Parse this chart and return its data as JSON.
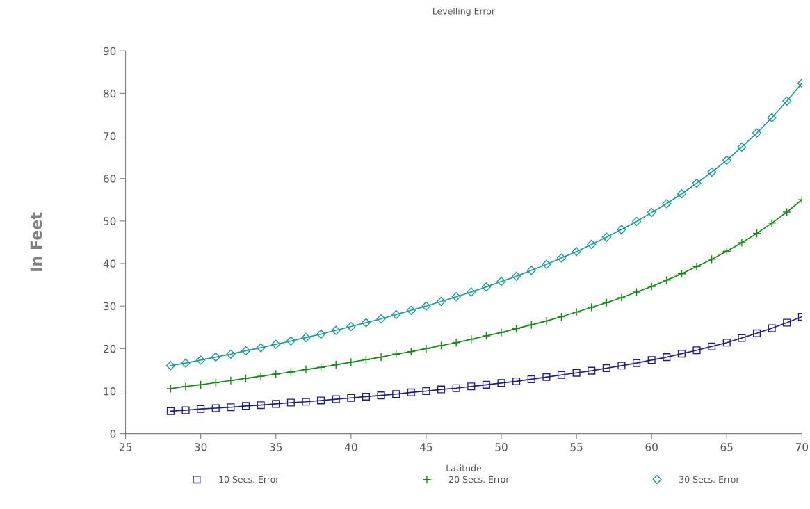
{
  "chart_data": {
    "type": "line",
    "title": "Levelling Error",
    "xlabel": "Latitude",
    "ylabel": "In Feet",
    "x": [
      28,
      29,
      30,
      31,
      32,
      33,
      34,
      35,
      36,
      37,
      38,
      39,
      40,
      41,
      42,
      43,
      44,
      45,
      46,
      47,
      48,
      49,
      50,
      51,
      52,
      53,
      54,
      55,
      56,
      57,
      58,
      59,
      60,
      61,
      62,
      63,
      64,
      65,
      66,
      67,
      68,
      69,
      70
    ],
    "series": [
      {
        "name": "10 Secs. Error",
        "color": "#1c1c8c",
        "marker": "square",
        "values": [
          5.3,
          5.5,
          5.8,
          6.0,
          6.2,
          6.5,
          6.7,
          7.0,
          7.3,
          7.5,
          7.8,
          8.1,
          8.4,
          8.7,
          9.0,
          9.3,
          9.7,
          10.0,
          10.4,
          10.7,
          11.1,
          11.5,
          11.9,
          12.3,
          12.8,
          13.3,
          13.8,
          14.3,
          14.8,
          15.4,
          16.0,
          16.6,
          17.3,
          18.0,
          18.8,
          19.6,
          20.5,
          21.4,
          22.5,
          23.6,
          24.8,
          26.1,
          27.5
        ]
      },
      {
        "name": "20 Secs. Error",
        "color": "#108a10",
        "marker": "cross",
        "values": [
          10.6,
          11.1,
          11.5,
          12.0,
          12.5,
          13.0,
          13.5,
          14.0,
          14.5,
          15.1,
          15.6,
          16.2,
          16.8,
          17.4,
          18.0,
          18.7,
          19.3,
          20.0,
          20.7,
          21.4,
          22.2,
          23.0,
          23.8,
          24.7,
          25.6,
          26.5,
          27.5,
          28.6,
          29.7,
          30.8,
          32.0,
          33.3,
          34.6,
          36.1,
          37.6,
          39.3,
          41.0,
          42.9,
          44.9,
          47.1,
          49.5,
          52.1,
          55.0
        ]
      },
      {
        "name": "30 Secs. Error",
        "color": "#1a9a9a",
        "marker": "diamond",
        "values": [
          16.0,
          16.6,
          17.3,
          18.0,
          18.7,
          19.5,
          20.2,
          21.0,
          21.8,
          22.6,
          23.4,
          24.3,
          25.2,
          26.1,
          27.0,
          28.0,
          29.0,
          30.0,
          31.1,
          32.2,
          33.3,
          34.5,
          35.8,
          37.0,
          38.4,
          39.8,
          41.3,
          42.8,
          44.5,
          46.2,
          48.0,
          49.9,
          52.0,
          54.1,
          56.4,
          58.9,
          61.5,
          64.3,
          67.4,
          70.7,
          74.3,
          78.2,
          82.4
        ]
      }
    ],
    "xlim": [
      25,
      70
    ],
    "xticks": [
      25,
      30,
      35,
      40,
      45,
      50,
      55,
      60,
      65,
      70
    ],
    "ylim": [
      0,
      90
    ],
    "yticks": [
      0,
      10,
      20,
      30,
      40,
      50,
      60,
      70,
      80,
      90
    ],
    "grid": false,
    "legend": "bottom",
    "line_style": "solid"
  }
}
